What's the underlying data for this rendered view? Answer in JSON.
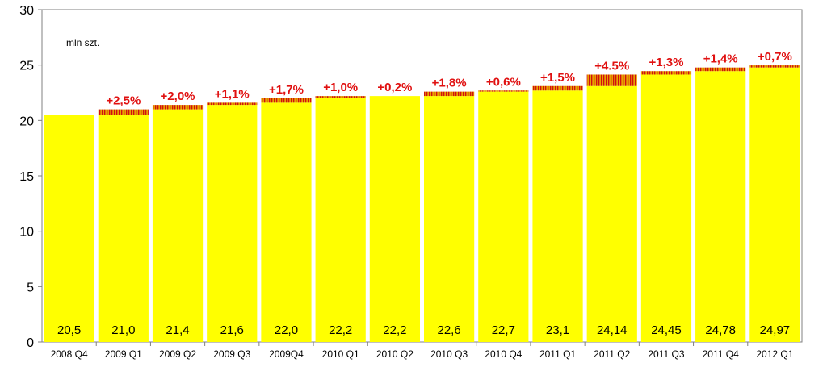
{
  "chart_data": {
    "type": "bar",
    "unit_label": "mln szt.",
    "categories": [
      "2008 Q4",
      "2009 Q1",
      "2009 Q2",
      "2009 Q3",
      "2009Q4",
      "2010 Q1",
      "2010 Q2",
      "2010 Q3",
      "2010 Q4",
      "2011 Q1",
      "2011 Q2",
      "2011 Q3",
      "2011 Q4",
      "2012 Q1"
    ],
    "values": [
      20.5,
      21.0,
      21.4,
      21.6,
      22.0,
      22.2,
      22.2,
      22.6,
      22.7,
      23.1,
      24.14,
      24.45,
      24.78,
      24.97
    ],
    "value_labels": [
      "20,5",
      "21,0",
      "21,4",
      "21,6",
      "22,0",
      "22,2",
      "22,2",
      "22,6",
      "22,7",
      "23,1",
      "24,14",
      "24,45",
      "24,78",
      "24,97"
    ],
    "change_labels": [
      "",
      "+2,5%",
      "+2,0%",
      "+1,1%",
      "+1,7%",
      "+1,0%",
      "+0,2%",
      "+1,8%",
      "+0,6%",
      "+1,5%",
      "+4.5%",
      "+1,3%",
      "+1,4%",
      "+0,7%"
    ],
    "y_ticks": [
      0,
      5,
      10,
      15,
      20,
      25,
      30
    ],
    "ylim": [
      0,
      30
    ],
    "grid": false,
    "colors": {
      "bar": "#ffff00",
      "increment_stripe_a": "#e8a000",
      "increment_stripe_b": "#d01010",
      "change_label": "#e01010",
      "axis": "#808080"
    }
  }
}
